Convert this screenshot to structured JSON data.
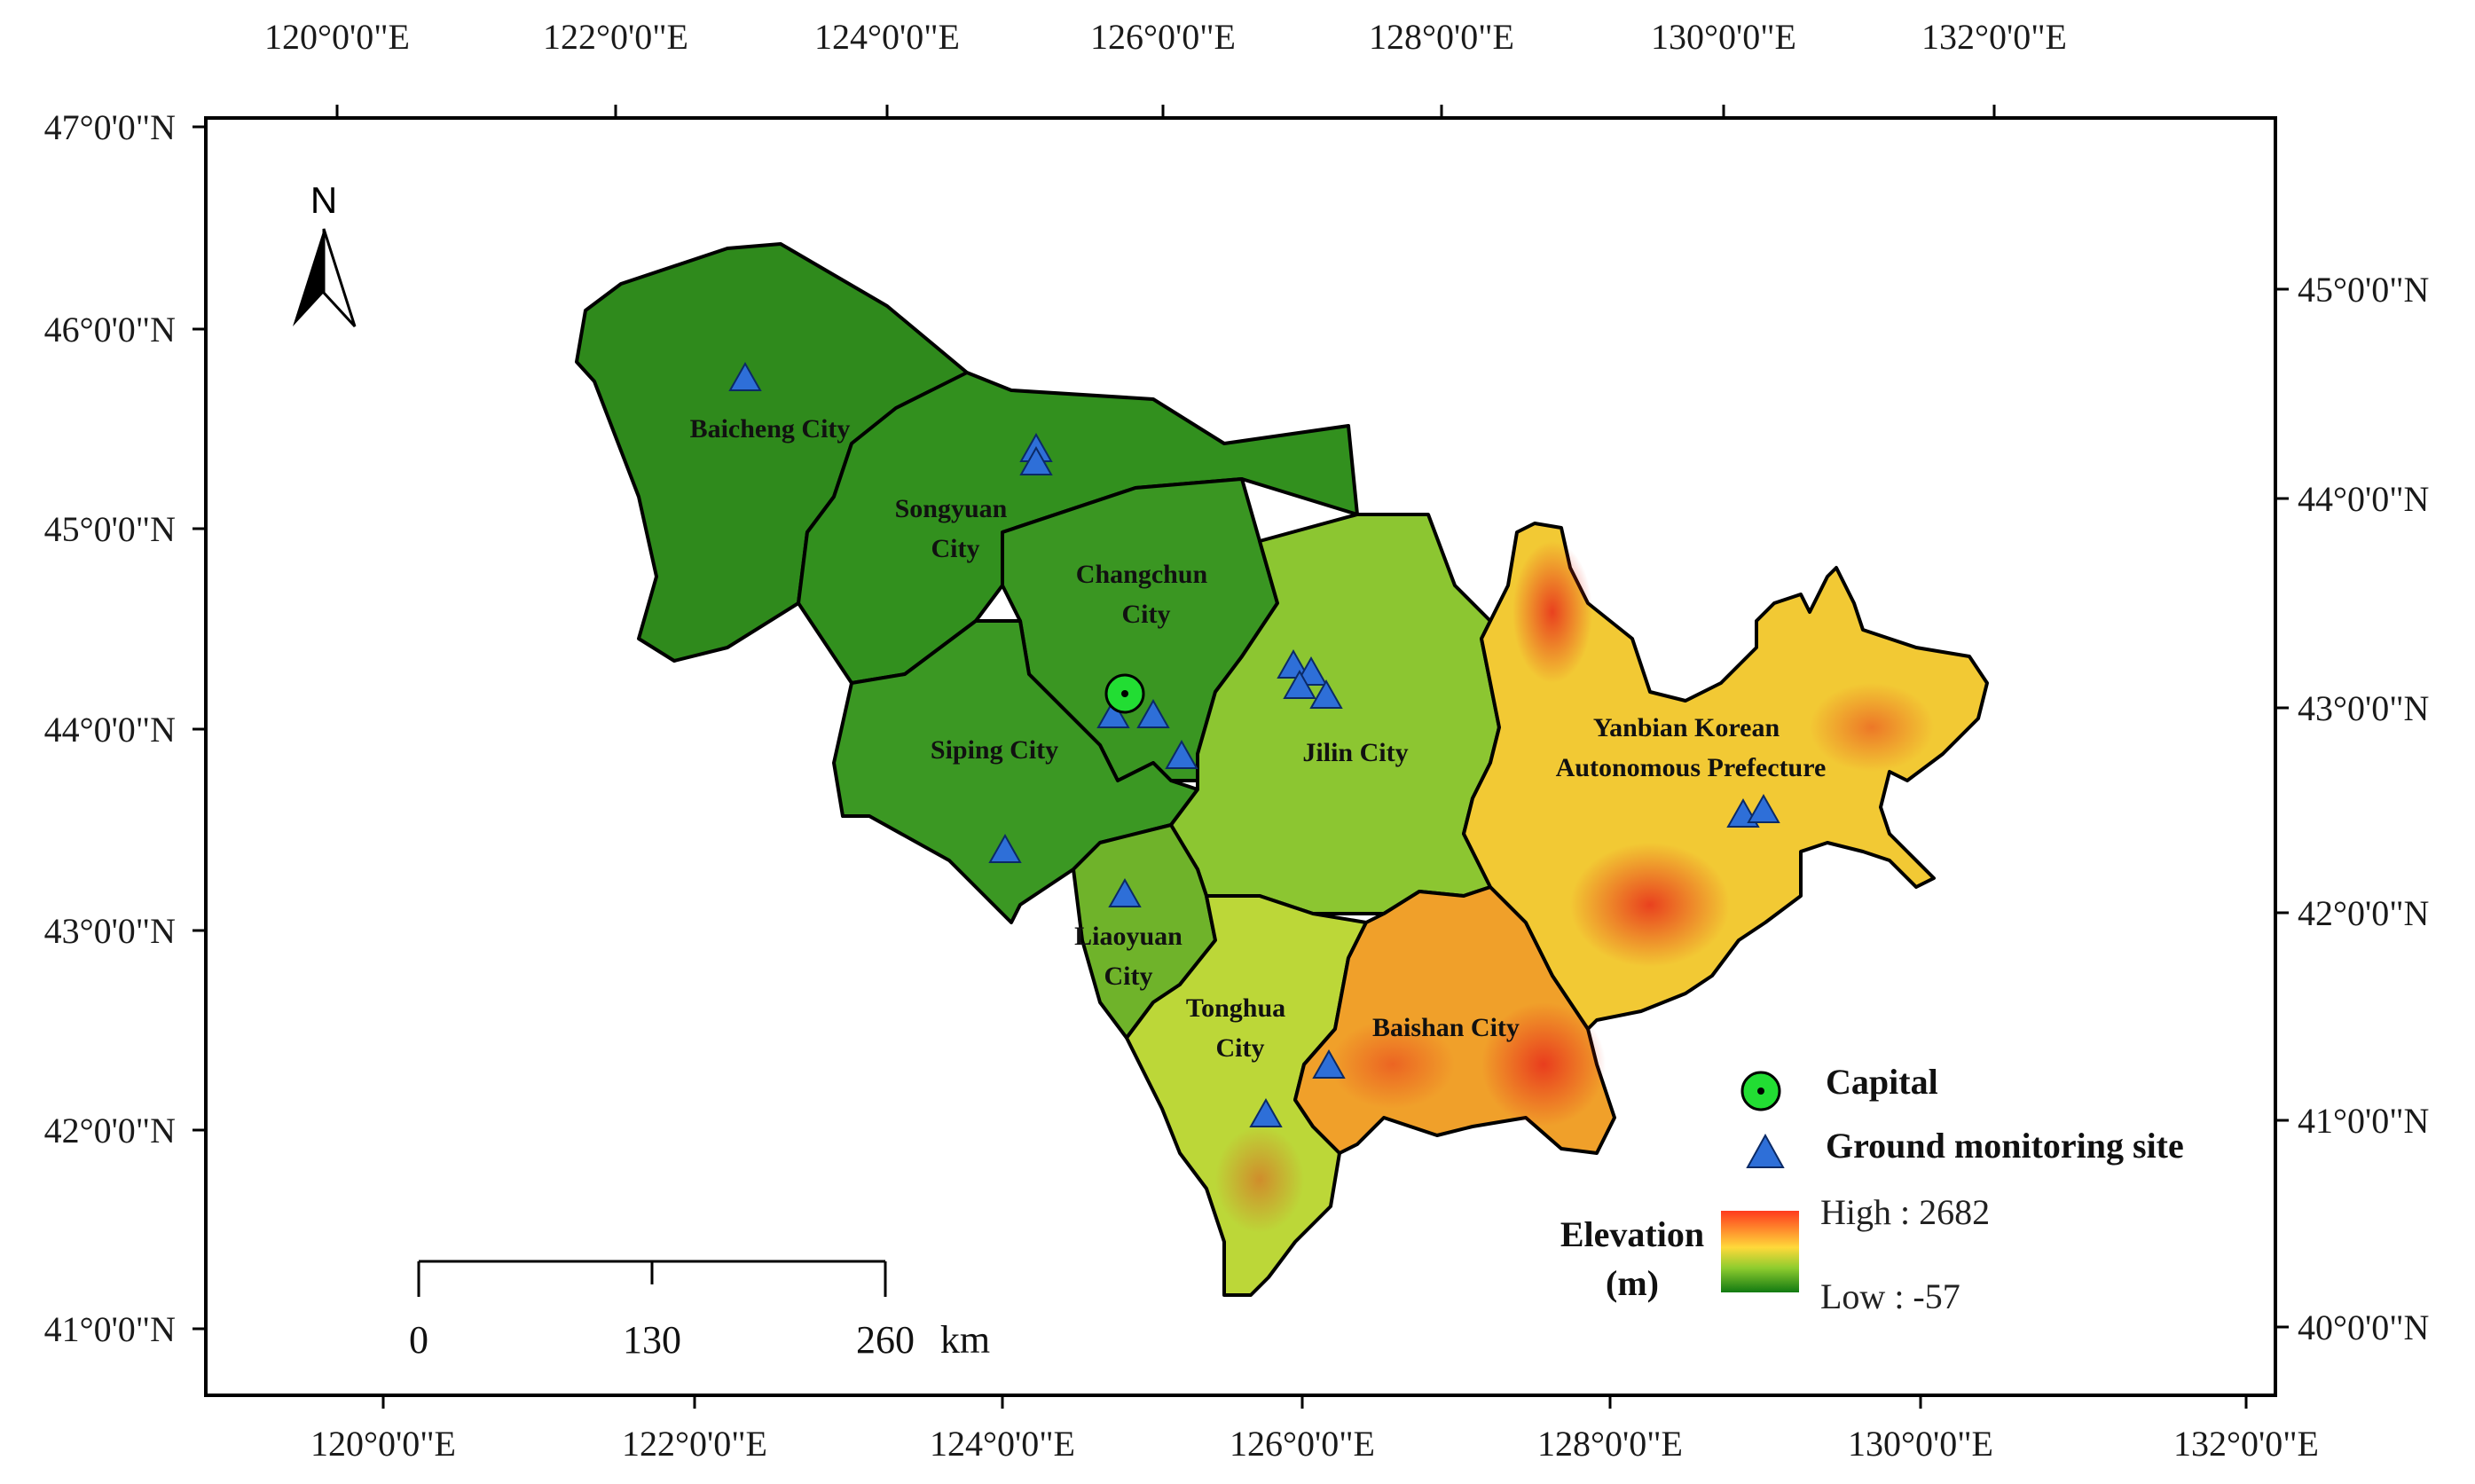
{
  "map": {
    "top_lon_labels": [
      "120°0'0\"E",
      "122°0'0\"E",
      "124°0'0\"E",
      "126°0'0\"E",
      "128°0'0\"E",
      "130°0'0\"E",
      "132°0'0\"E"
    ],
    "bottom_lon_labels": [
      "120°0'0\"E",
      "122°0'0\"E",
      "124°0'0\"E",
      "126°0'0\"E",
      "128°0'0\"E",
      "130°0'0\"E",
      "132°0'0\"E"
    ],
    "left_lat_labels": [
      "47°0'0\"N",
      "46°0'0\"N",
      "45°0'0\"N",
      "44°0'0\"N",
      "43°0'0\"N",
      "42°0'0\"N",
      "41°0'0\"N"
    ],
    "right_lat_labels": [
      "45°0'0\"N",
      "44°0'0\"N",
      "43°0'0\"N",
      "42°0'0\"N",
      "41°0'0\"N",
      "40°0'0\"N"
    ],
    "north_arrow": {
      "label": "N",
      "icon": "north-arrow-icon"
    },
    "regions": [
      {
        "name": "Baicheng City",
        "label_lines": [
          "Baicheng City"
        ],
        "color": "#2f8a1c"
      },
      {
        "name": "Songyuan City",
        "label_lines": [
          "Songyuan",
          "City"
        ],
        "color": "#32901e"
      },
      {
        "name": "Changchun City",
        "label_lines": [
          "Changchun",
          "City"
        ],
        "color": "#3a9622"
      },
      {
        "name": "Siping City",
        "label_lines": [
          "Siping City"
        ],
        "color": "#3b9823"
      },
      {
        "name": "Jilin City",
        "label_lines": [
          "Jilin City"
        ],
        "color": "#8cc631"
      },
      {
        "name": "Liaoyuan City",
        "label_lines": [
          "Liaoyuan",
          "City"
        ],
        "color": "#6fb32a"
      },
      {
        "name": "Tonghua City",
        "label_lines": [
          "Tonghua",
          "City"
        ],
        "color": "#bcd738"
      },
      {
        "name": "Baishan City",
        "label_lines": [
          "Baishan City"
        ],
        "color": "#f0a02a"
      },
      {
        "name": "Yanbian Korean Autonomous Prefecture",
        "label_lines": [
          "Yanbian Korean",
          "Autonomous Prefecture"
        ],
        "color": "#f2c934"
      }
    ],
    "capital": {
      "name": "Capital",
      "color": "#22dd33"
    },
    "site_color": "#2e6fd8",
    "legend": {
      "capital_label": "Capital",
      "site_label": "Ground monitoring site",
      "elevation_title": "Elevation",
      "elevation_unit": "(m)",
      "high_label": "High : 2682",
      "low_label": "Low : -57"
    },
    "scale_bar": {
      "ticks": [
        "0",
        "130",
        "260"
      ],
      "unit": "km"
    }
  }
}
